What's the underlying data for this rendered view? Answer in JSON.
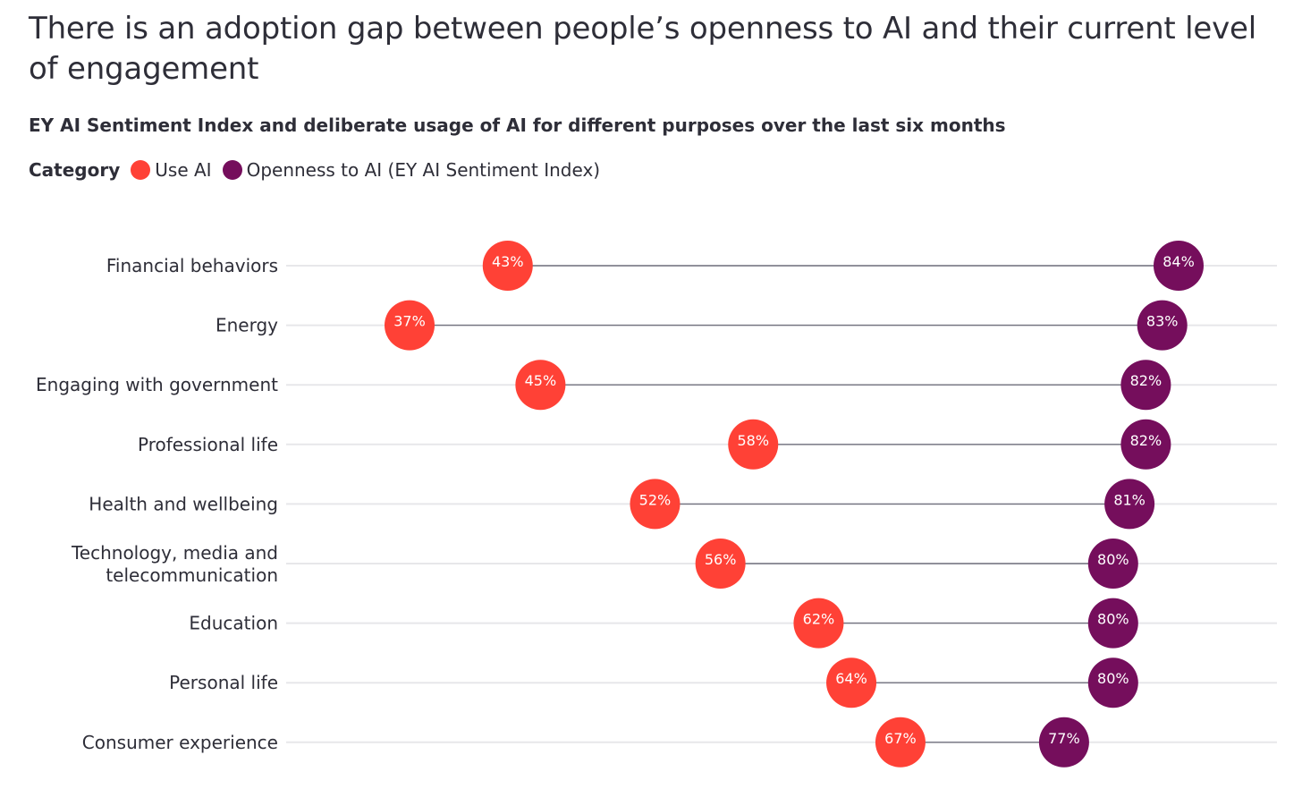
{
  "title": "There is an adoption gap between people’s openness to AI and their current level of engagement",
  "subtitle": "EY AI Sentiment Index and deliberate usage of AI for different purposes over the last six months",
  "legend": {
    "title": "Category",
    "items": [
      {
        "label": "Use AI",
        "color": "#ff4136"
      },
      {
        "label": "Openness to AI (EY AI Sentiment Index)",
        "color": "#750e5c"
      }
    ]
  },
  "chart_data": {
    "type": "dumbbell",
    "categories": [
      [
        "Financial behaviors"
      ],
      [
        "Energy"
      ],
      [
        "Engaging with government"
      ],
      [
        "Professional life"
      ],
      [
        "Health and wellbeing"
      ],
      [
        "Technology, media and",
        "telecommunication"
      ],
      [
        "Education"
      ],
      [
        "Personal life"
      ],
      [
        "Consumer experience"
      ]
    ],
    "series": [
      {
        "name": "Use AI",
        "color": "#ff4136",
        "values": [
          43,
          37,
          45,
          58,
          52,
          56,
          62,
          64,
          67
        ],
        "labels": [
          "43%",
          "37%",
          "45%",
          "58%",
          "52%",
          "56%",
          "62%",
          "64%",
          "67%"
        ]
      },
      {
        "name": "Openness to AI (EY AI Sentiment Index)",
        "color": "#750e5c",
        "values": [
          84,
          83,
          82,
          82,
          81,
          80,
          80,
          80,
          77
        ],
        "labels": [
          "84%",
          "83%",
          "82%",
          "82%",
          "81%",
          "80%",
          "80%",
          "80%",
          "77%"
        ]
      }
    ],
    "unit": "%",
    "grid": true,
    "connector_color": "#747480",
    "gridline_color": "#e7e7ea"
  }
}
